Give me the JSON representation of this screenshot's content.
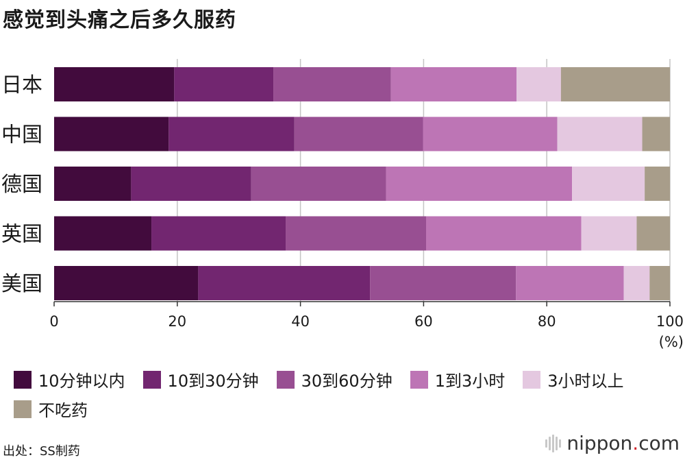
{
  "chart_data": {
    "type": "bar",
    "orientation": "horizontal",
    "stacked": true,
    "title": "感觉到头痛之后多久服药",
    "categories": [
      "日本",
      "中国",
      "德国",
      "英国",
      "美国"
    ],
    "series": [
      {
        "name": "10分钟以内",
        "color": "#420b3d",
        "values": [
          19.5,
          18.6,
          12.5,
          15.8,
          23.4
        ]
      },
      {
        "name": "10到30分钟",
        "color": "#722670",
        "values": [
          16.1,
          20.4,
          19.5,
          21.8,
          27.9
        ]
      },
      {
        "name": "30到60分钟",
        "color": "#984f92",
        "values": [
          19.1,
          20.9,
          21.9,
          22.8,
          23.7
        ]
      },
      {
        "name": "1到3小时",
        "color": "#bd75b5",
        "values": [
          20.4,
          21.8,
          30.2,
          25.2,
          17.5
        ]
      },
      {
        "name": "3小时以上",
        "color": "#e4c8e0",
        "values": [
          7.2,
          13.8,
          11.8,
          9.0,
          4.2
        ]
      },
      {
        "name": "不吃药",
        "color": "#a89d8a",
        "values": [
          17.7,
          4.5,
          4.1,
          5.4,
          3.3
        ]
      }
    ],
    "xlim": [
      0,
      100
    ],
    "xticks": [
      "0",
      "20",
      "40",
      "60",
      "80",
      "100"
    ],
    "xunit": "(%)",
    "grid": true,
    "legend": "bottom"
  },
  "source": "出处：SS制药",
  "brand": {
    "name": "nippon",
    "dot": ".",
    "tld": "com"
  }
}
